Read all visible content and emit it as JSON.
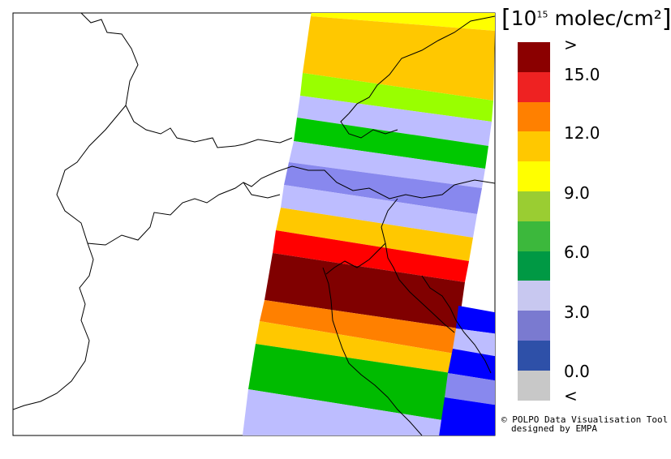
{
  "legend": {
    "title_prefix": "10",
    "title_exponent": "15",
    "title_unit": "molec/cm²",
    "ticks": [
      ">",
      "15.0",
      "12.0",
      "9.0",
      "6.0",
      "3.0",
      "0.0",
      "<"
    ],
    "colors": [
      "#8b0000",
      "#ee2222",
      "#ff8000",
      "#ffc800",
      "#ffff00",
      "#9acd32",
      "#3cb83c",
      "#009944",
      "#c8c8f0",
      "#7a7ad0",
      "#2e50a8",
      "#c8c8c8"
    ]
  },
  "credit": {
    "line1": "© POLPO Data Visualisation Tool",
    "line2": "designed by EMPA"
  },
  "swath_colors": [
    "#ffff00",
    "#ffc800",
    "#99ff00",
    "#bdbdff",
    "#00c800",
    "#bdbdff",
    "#8888ee",
    "#bdbdff",
    "#ffc800",
    "#ff0000",
    "#800000",
    "#ff8000",
    "#ffc800",
    "#00bb00",
    "#bdbdff"
  ]
}
